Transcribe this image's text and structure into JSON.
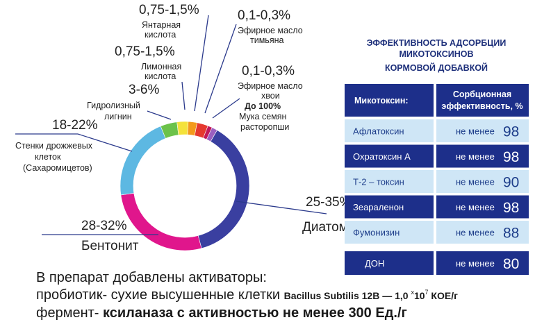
{
  "donut": {
    "segments": [
      {
        "range": "25-35%",
        "name": [
          "Диатомит"
        ]
      },
      {
        "range": "28-32%",
        "name": [
          "Бентонит"
        ]
      },
      {
        "range": "18-22%",
        "name": [
          "Стенки дрожжевых",
          "клеток",
          "(Сахаромицетов)"
        ]
      },
      {
        "range": "3-6%",
        "name": [
          "Гидролизный",
          "лигнин"
        ]
      },
      {
        "range": "0,75-1,5%",
        "name": [
          "Лимонная",
          "кислота"
        ]
      },
      {
        "range": "0,75-1,5%",
        "name": [
          "Янтарная",
          "кислота"
        ]
      },
      {
        "range": "0,1-0,3%",
        "name": [
          "Эфирное масло",
          "тимьяна"
        ]
      },
      {
        "range": "0,1-0,3%",
        "name": [
          "Эфирное масло",
          "хвои"
        ]
      },
      {
        "range": "До 100%",
        "name": [
          "Мука семян",
          "расторопши"
        ]
      }
    ]
  },
  "table": {
    "title": [
      "ЭФФЕКТИВНОСТЬ АДСОРБЦИИ",
      "МИКОТОКСИНОВ",
      "КОРМОВОЙ ДОБАВКОЙ"
    ],
    "header": [
      "Микотоксин:",
      [
        "Сорбционная",
        "эффективность, %"
      ]
    ],
    "rows": [
      [
        "Афлатоксин",
        "не менее",
        "98"
      ],
      [
        "Охратоксин А",
        "не менее",
        "98"
      ],
      [
        "Т-2 – токсин",
        "не менее",
        "90"
      ],
      [
        "Зеараленон",
        "не менее",
        "98"
      ],
      [
        "Фумонизин",
        "не менее",
        "88"
      ],
      [
        "ДОН",
        "не менее",
        "80"
      ]
    ]
  },
  "footer": {
    "line1": "В препарат добавлены активаторы:",
    "line2": [
      "пробиотик- сухие высушенные клетки ",
      "Bacillus Subtilis 12В — 1,0 ",
      "x",
      "10",
      "7",
      " КОЕ/г"
    ],
    "line3": [
      "фермент- ",
      "ксиланаза с активностью не менее 300 Ед./г"
    ]
  }
}
